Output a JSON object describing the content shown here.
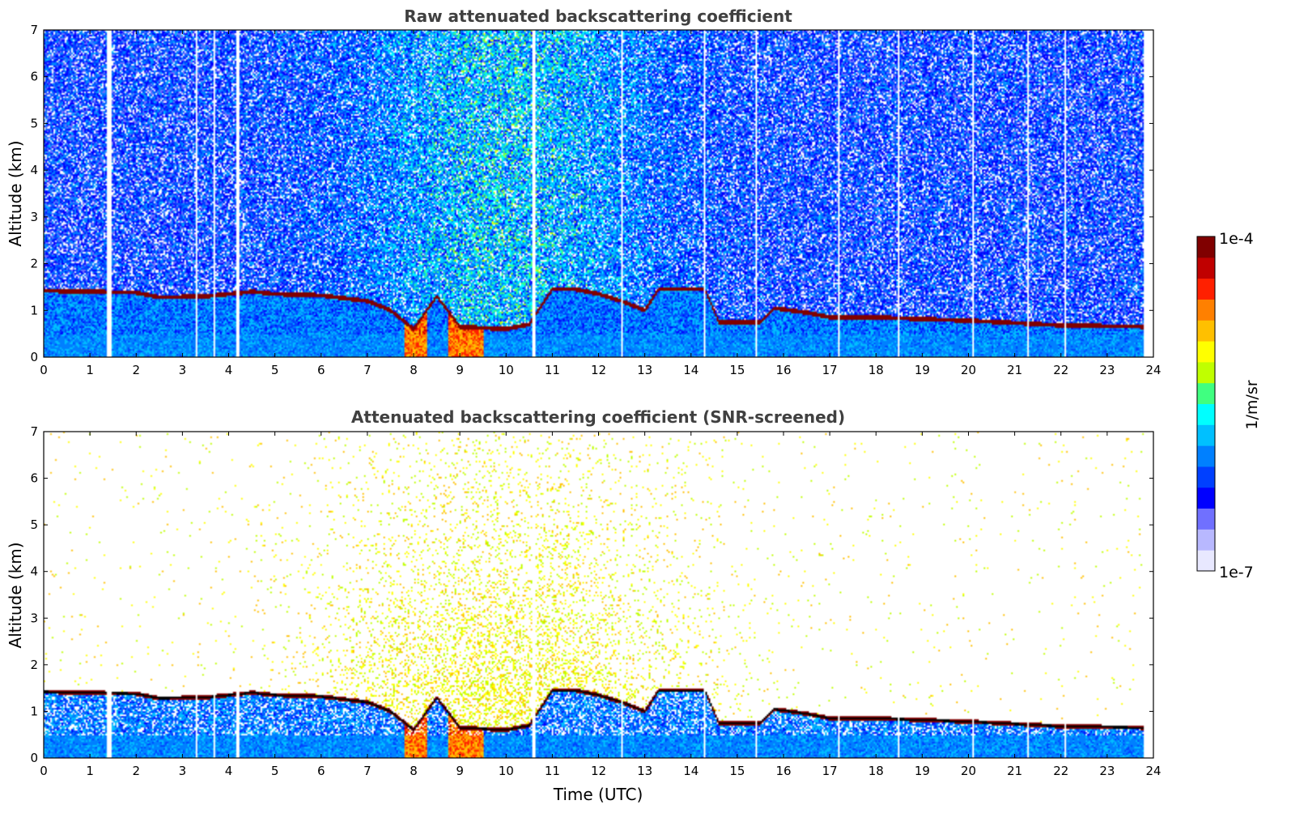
{
  "chart_data": [
    {
      "type": "heatmap",
      "title": "Raw attenuated backscattering coefficient",
      "xlabel": "",
      "ylabel": "Altitude (km)",
      "xlim": [
        0,
        24
      ],
      "ylim": [
        0,
        7
      ],
      "xticks": [
        "0",
        "1",
        "2",
        "3",
        "4",
        "5",
        "6",
        "7",
        "8",
        "9",
        "10",
        "11",
        "12",
        "13",
        "14",
        "15",
        "16",
        "17",
        "18",
        "19",
        "20",
        "21",
        "22",
        "23",
        "24"
      ],
      "yticks": [
        "0",
        "1",
        "2",
        "3",
        "4",
        "5",
        "6",
        "7"
      ],
      "data_end_hour": 23.8,
      "features": {
        "noise_background": "log10 beta about -6.3 above boundary layer, higher around 7-13 UTC (daylight)",
        "boundary_layer_top_km": [
          [
            0,
            1.42
          ],
          [
            1,
            1.4
          ],
          [
            2,
            1.38
          ],
          [
            2.5,
            1.28
          ],
          [
            3.5,
            1.3
          ],
          [
            4,
            1.35
          ],
          [
            4.5,
            1.4
          ],
          [
            5,
            1.35
          ],
          [
            6,
            1.32
          ],
          [
            7,
            1.2
          ],
          [
            7.5,
            1.0
          ],
          [
            8,
            0.6
          ],
          [
            8.5,
            1.3
          ],
          [
            9,
            0.65
          ],
          [
            10,
            0.6
          ],
          [
            10.5,
            0.7
          ],
          [
            11,
            1.45
          ],
          [
            11.5,
            1.45
          ],
          [
            12,
            1.35
          ],
          [
            12.5,
            1.2
          ],
          [
            13,
            1.0
          ],
          [
            13.3,
            1.45
          ],
          [
            14.3,
            1.45
          ],
          [
            14.6,
            0.75
          ],
          [
            15.5,
            0.75
          ],
          [
            15.8,
            1.05
          ],
          [
            16.5,
            0.95
          ],
          [
            17,
            0.85
          ],
          [
            18,
            0.85
          ],
          [
            20,
            0.78
          ],
          [
            22,
            0.68
          ],
          [
            23.8,
            0.65
          ]
        ],
        "strong_signal_columns_utc": [
          [
            7.8,
            8.3
          ],
          [
            8.75,
            9.5
          ]
        ],
        "gap_columns_utc": [
          1.4,
          1.45,
          3.3,
          3.7,
          4.2,
          10.6,
          12.5,
          14.3,
          15.4,
          17.2,
          18.5,
          20.1,
          21.3,
          22.1
        ]
      }
    },
    {
      "type": "heatmap",
      "title": "Attenuated backscattering coefficient (SNR-screened)",
      "xlabel": "Time (UTC)",
      "ylabel": "Altitude (km)",
      "xlim": [
        0,
        24
      ],
      "ylim": [
        0,
        7
      ],
      "xticks": [
        "0",
        "1",
        "2",
        "3",
        "4",
        "5",
        "6",
        "7",
        "8",
        "9",
        "10",
        "11",
        "12",
        "13",
        "14",
        "15",
        "16",
        "17",
        "18",
        "19",
        "20",
        "21",
        "22",
        "23",
        "24"
      ],
      "yticks": [
        "0",
        "1",
        "2",
        "3",
        "4",
        "5",
        "6",
        "7"
      ],
      "data_end_hour": 23.8,
      "features": {
        "screening": "noise-only pixels removed; sparse surviving pixels in the free troposphere, densest 6-14 UTC up to about 6 km",
        "boundary_layer_top_km": "same as raw panel, outlined in black"
      }
    }
  ],
  "colorbar": {
    "label": "1/m/sr",
    "min_label": "1e-7",
    "max_label": "1e-4",
    "scale": "log",
    "vmin": 1e-07,
    "vmax": 0.0001,
    "colors": [
      "#e8e8ff",
      "#b8b8ff",
      "#7070ff",
      "#0000ff",
      "#0040ff",
      "#0080ff",
      "#00c0ff",
      "#00ffff",
      "#40ff80",
      "#c0ff00",
      "#ffff00",
      "#ffc000",
      "#ff8000",
      "#ff2000",
      "#c00000",
      "#800000"
    ]
  }
}
